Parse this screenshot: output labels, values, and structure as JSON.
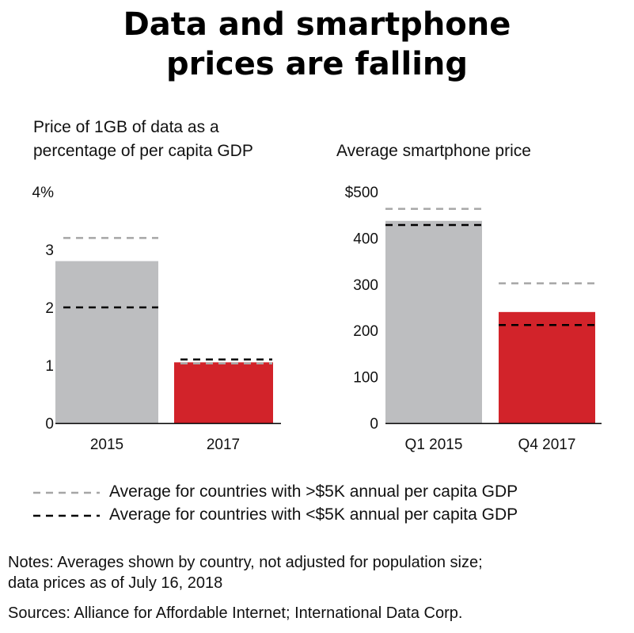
{
  "title_line1": "Data and smartphone",
  "title_line2": "prices are falling",
  "legend": {
    "high": "Average for countries with >$5K annual per capita GDP",
    "low": "Average for countries with <$5K annual per capita GDP"
  },
  "notes_line1": "Notes: Averages shown by country, not adjusted for population size;",
  "notes_line2": "data prices as of July 16, 2018",
  "sources": "Sources: Alliance for Affordable Internet; International Data Corp.",
  "colors": {
    "bar_early": "#bdbec0",
    "bar_late": "#d2232a",
    "avg_high_line": "#a6a6a6",
    "avg_low_line": "#000000",
    "axis": "#000000"
  },
  "chart_data": [
    {
      "type": "bar",
      "subtitle_line1": "Price of 1GB of data as a",
      "subtitle_line2": "percentage of per capita GDP",
      "categories": [
        "2015",
        "2017"
      ],
      "values": [
        2.8,
        1.05
      ],
      "reference_lines": {
        "high_gdp_average": [
          3.2,
          1.03
        ],
        "low_gdp_average": [
          2.0,
          1.1
        ]
      },
      "yticks": [
        "0",
        "1",
        "2",
        "3",
        "4%"
      ],
      "ytick_values": [
        0,
        1,
        2,
        3,
        4
      ],
      "ylim": [
        0,
        4
      ],
      "xlabel": "",
      "ylabel": ""
    },
    {
      "type": "bar",
      "subtitle_line1": "Average smartphone price",
      "categories": [
        "Q1 2015",
        "Q4 2017"
      ],
      "values": [
        437,
        240
      ],
      "reference_lines": {
        "high_gdp_average": [
          463,
          302
        ],
        "low_gdp_average": [
          428,
          212
        ]
      },
      "yticks": [
        "0",
        "100",
        "200",
        "300",
        "400",
        "$500"
      ],
      "ytick_values": [
        0,
        100,
        200,
        300,
        400,
        500
      ],
      "ylim": [
        0,
        500
      ],
      "xlabel": "",
      "ylabel": ""
    }
  ]
}
